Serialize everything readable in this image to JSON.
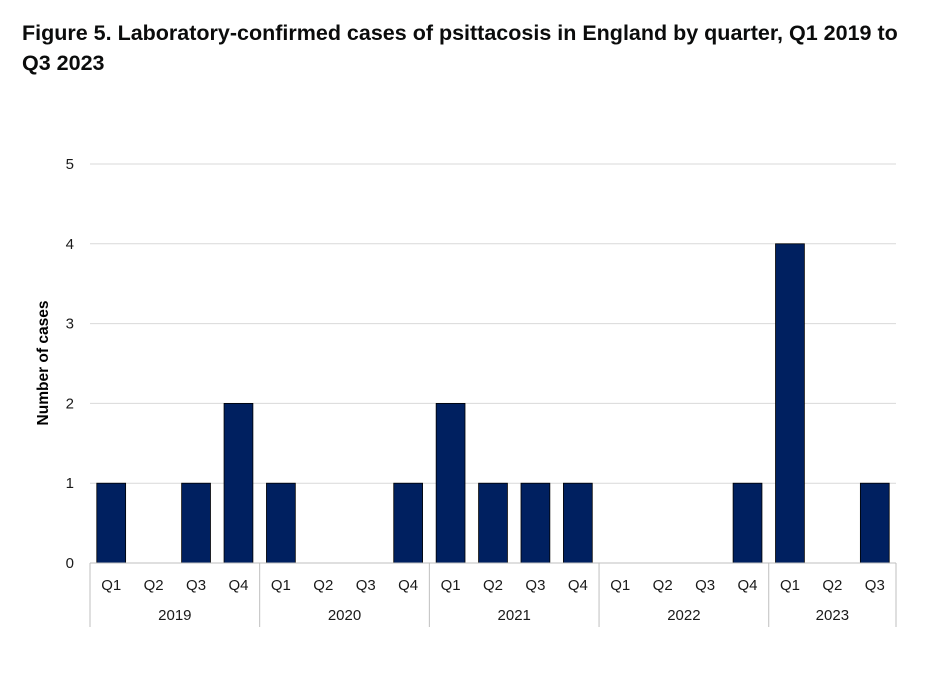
{
  "title": "Figure 5. Laboratory-confirmed cases of psittacosis in England by quarter, Q1 2019 to Q3 2023",
  "chart_data": {
    "type": "bar",
    "title": "Figure 5. Laboratory-confirmed cases of psittacosis in England by quarter, Q1 2019 to Q3 2023",
    "xlabel": "",
    "ylabel": "Number of cases",
    "ylim": [
      0,
      5
    ],
    "yticks": [
      0,
      1,
      2,
      3,
      4,
      5
    ],
    "grid": true,
    "bar_color": "#002060",
    "years": [
      "2019",
      "2020",
      "2021",
      "2022",
      "2023"
    ],
    "categories": [
      {
        "year": "2019",
        "quarter": "Q1"
      },
      {
        "year": "2019",
        "quarter": "Q2"
      },
      {
        "year": "2019",
        "quarter": "Q3"
      },
      {
        "year": "2019",
        "quarter": "Q4"
      },
      {
        "year": "2020",
        "quarter": "Q1"
      },
      {
        "year": "2020",
        "quarter": "Q2"
      },
      {
        "year": "2020",
        "quarter": "Q3"
      },
      {
        "year": "2020",
        "quarter": "Q4"
      },
      {
        "year": "2021",
        "quarter": "Q1"
      },
      {
        "year": "2021",
        "quarter": "Q2"
      },
      {
        "year": "2021",
        "quarter": "Q3"
      },
      {
        "year": "2021",
        "quarter": "Q4"
      },
      {
        "year": "2022",
        "quarter": "Q1"
      },
      {
        "year": "2022",
        "quarter": "Q2"
      },
      {
        "year": "2022",
        "quarter": "Q3"
      },
      {
        "year": "2022",
        "quarter": "Q4"
      },
      {
        "year": "2023",
        "quarter": "Q1"
      },
      {
        "year": "2023",
        "quarter": "Q2"
      },
      {
        "year": "2023",
        "quarter": "Q3"
      }
    ],
    "values": [
      1,
      0,
      1,
      2,
      1,
      0,
      0,
      1,
      2,
      1,
      1,
      1,
      0,
      0,
      0,
      1,
      4,
      0,
      1
    ]
  }
}
